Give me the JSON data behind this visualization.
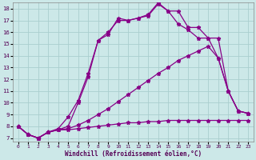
{
  "xlabel": "Windchill (Refroidissement éolien,°C)",
  "background_color": "#cce8e8",
  "line_color": "#880088",
  "xlim": [
    -0.5,
    23.5
  ],
  "ylim": [
    6.7,
    18.5
  ],
  "xticks": [
    0,
    1,
    2,
    3,
    4,
    5,
    6,
    7,
    8,
    9,
    10,
    11,
    12,
    13,
    14,
    15,
    16,
    17,
    18,
    19,
    20,
    21,
    22,
    23
  ],
  "yticks": [
    7,
    8,
    9,
    10,
    11,
    12,
    13,
    14,
    15,
    16,
    17,
    18
  ],
  "line1_x": [
    0,
    1,
    2,
    3,
    4,
    5,
    6,
    7,
    8,
    9,
    10,
    11,
    12,
    13,
    14,
    15,
    16,
    17,
    18,
    19,
    20,
    21,
    22,
    23
  ],
  "line1_y": [
    8.0,
    7.3,
    7.0,
    7.5,
    7.7,
    7.7,
    7.8,
    7.9,
    8.0,
    8.1,
    8.2,
    8.3,
    8.3,
    8.4,
    8.4,
    8.5,
    8.5,
    8.5,
    8.5,
    8.5,
    8.5,
    8.5,
    8.5,
    8.5
  ],
  "line2_x": [
    0,
    1,
    2,
    3,
    4,
    5,
    6,
    7,
    8,
    9,
    10,
    11,
    12,
    13,
    14,
    15,
    16,
    17,
    18,
    19,
    20,
    21,
    22,
    23
  ],
  "line2_y": [
    8.0,
    7.3,
    7.0,
    7.5,
    7.7,
    7.8,
    8.1,
    8.5,
    9.0,
    9.5,
    10.1,
    10.7,
    11.3,
    11.9,
    12.5,
    13.0,
    13.6,
    14.0,
    14.4,
    14.8,
    13.8,
    11.0,
    9.3,
    9.1
  ],
  "line3_x": [
    0,
    1,
    2,
    3,
    4,
    5,
    6,
    7,
    8,
    9,
    10,
    11,
    12,
    13,
    14,
    15,
    16,
    17,
    18,
    19,
    20,
    21,
    22,
    23
  ],
  "line3_y": [
    8.0,
    7.3,
    7.0,
    7.5,
    7.7,
    8.0,
    10.0,
    12.2,
    15.3,
    16.0,
    17.0,
    17.0,
    17.2,
    17.4,
    18.4,
    17.8,
    16.7,
    16.2,
    15.5,
    15.5,
    13.8,
    11.0,
    9.3,
    9.1
  ],
  "line4_x": [
    0,
    1,
    2,
    3,
    4,
    5,
    6,
    7,
    8,
    9,
    10,
    11,
    12,
    13,
    14,
    15,
    16,
    17,
    18,
    19,
    20,
    21,
    22,
    23
  ],
  "line4_y": [
    8.0,
    7.3,
    7.0,
    7.5,
    7.8,
    8.8,
    10.2,
    12.5,
    15.3,
    15.8,
    17.2,
    17.0,
    17.2,
    17.5,
    18.5,
    17.8,
    17.8,
    16.4,
    16.4,
    15.5,
    15.5,
    11.0,
    9.3,
    9.1
  ]
}
